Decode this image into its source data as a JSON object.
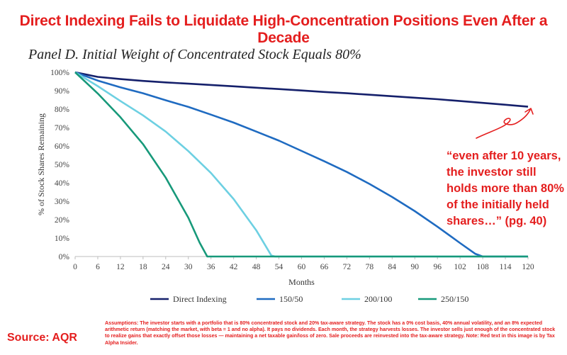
{
  "headline": "Direct Indexing Fails to Liquidate High-Concentration Positions Even After a Decade",
  "callout": "“even after 10 years, the investor still holds more than 80% of the initially held shares…” (pg. 40)",
  "assumptions": "Assumptions: The investor starts with a portfolio that is 80% concentrated stock and 20% tax-aware strategy. The stock has a 0% cost basis, 40% annual volatility, and an 8% expected arithmetic return (matching the market, with beta = 1 and no alpha). It pays no dividends. Each month, the strategy harvests losses. The investor sells just enough of the concentrated stock to realize gains that exactly offset those losses — maintaining a net taxable gain/loss of zero. Sale proceeds are reinvested into the tax-aware strategy. Note: Red text in this image is by Tax Alpha Insider.",
  "source": "Source: AQR",
  "colors": {
    "accent_red": "#e41e1e"
  },
  "chart_data": {
    "type": "line",
    "title": "Panel D. Initial Weight of Concentrated Stock Equals 80%",
    "xlabel": "Months",
    "ylabel": "% of Stock Shares Remaining",
    "xlim": [
      0,
      120
    ],
    "ylim": [
      0,
      100
    ],
    "x_ticks": [
      0,
      6,
      12,
      18,
      24,
      30,
      36,
      42,
      48,
      54,
      60,
      66,
      72,
      78,
      84,
      90,
      96,
      102,
      108,
      114,
      120
    ],
    "y_ticks": [
      0,
      10,
      20,
      30,
      40,
      50,
      60,
      70,
      80,
      90,
      100
    ],
    "y_tick_labels": [
      "0%",
      "10%",
      "20%",
      "30%",
      "40%",
      "50%",
      "60%",
      "70%",
      "80%",
      "90%",
      "100%"
    ],
    "grid": false,
    "legend_position": "bottom",
    "series": [
      {
        "name": "Direct Indexing",
        "color": "#15206b",
        "points": [
          [
            0,
            100
          ],
          [
            6,
            97.5
          ],
          [
            12,
            96.3
          ],
          [
            18,
            95.3
          ],
          [
            24,
            94.5
          ],
          [
            30,
            93.8
          ],
          [
            36,
            93.1
          ],
          [
            42,
            92.4
          ],
          [
            48,
            91.6
          ],
          [
            54,
            90.9
          ],
          [
            60,
            90.1
          ],
          [
            66,
            89.3
          ],
          [
            72,
            88.6
          ],
          [
            78,
            87.8
          ],
          [
            84,
            87.0
          ],
          [
            90,
            86.2
          ],
          [
            96,
            85.4
          ],
          [
            102,
            84.4
          ],
          [
            108,
            83.4
          ],
          [
            114,
            82.4
          ],
          [
            120,
            81.3
          ]
        ]
      },
      {
        "name": "150/50",
        "color": "#1f6bc1",
        "points": [
          [
            0,
            100
          ],
          [
            6,
            95.5
          ],
          [
            12,
            91.8
          ],
          [
            18,
            88.6
          ],
          [
            24,
            84.8
          ],
          [
            30,
            81.2
          ],
          [
            36,
            77.0
          ],
          [
            42,
            72.7
          ],
          [
            48,
            67.8
          ],
          [
            54,
            62.9
          ],
          [
            60,
            57.3
          ],
          [
            66,
            51.7
          ],
          [
            72,
            45.9
          ],
          [
            78,
            39.4
          ],
          [
            84,
            32.3
          ],
          [
            90,
            24.6
          ],
          [
            96,
            16.2
          ],
          [
            102,
            7.3
          ],
          [
            106,
            1.5
          ],
          [
            108,
            0
          ],
          [
            120,
            0
          ]
        ]
      },
      {
        "name": "200/100",
        "color": "#6dd0e2",
        "points": [
          [
            0,
            100
          ],
          [
            6,
            92.5
          ],
          [
            12,
            84.4
          ],
          [
            18,
            76.6
          ],
          [
            24,
            67.8
          ],
          [
            30,
            57.2
          ],
          [
            36,
            45.3
          ],
          [
            42,
            31.2
          ],
          [
            48,
            14.2
          ],
          [
            52,
            0.5
          ],
          [
            53,
            0
          ],
          [
            120,
            0
          ]
        ]
      },
      {
        "name": "250/150",
        "color": "#17997a",
        "points": [
          [
            0,
            100
          ],
          [
            6,
            88.5
          ],
          [
            12,
            75.6
          ],
          [
            18,
            61.0
          ],
          [
            24,
            42.8
          ],
          [
            30,
            21.0
          ],
          [
            33,
            7.5
          ],
          [
            35,
            0
          ],
          [
            120,
            0
          ]
        ]
      }
    ]
  }
}
